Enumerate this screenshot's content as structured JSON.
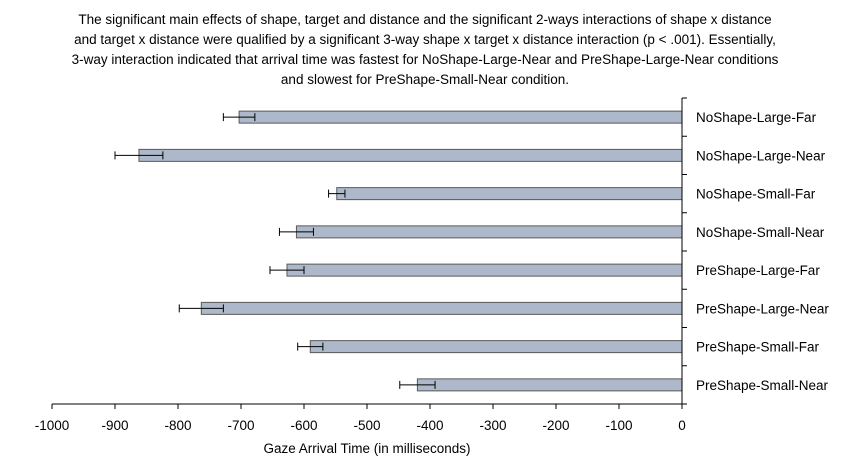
{
  "chart_data": {
    "type": "bar",
    "orientation": "horizontal",
    "title": "The significant main effects of shape, target and distance and the significant 2-ways interactions of shape x distance and target x distance were qualified by a significant 3-way shape x target x distance interaction (p < .001). Essentially, 3-way interaction indicated that arrival time was fastest for NoShape-Large-Near and PreShape-Large-Near conditions and slowest for PreShape-Small-Near condition.",
    "xlabel": "Gaze Arrival Time (in milliseconds)",
    "ylabel": "",
    "xlim": [
      -1000,
      0
    ],
    "xticks": [
      -1000,
      -900,
      -800,
      -700,
      -600,
      -500,
      -400,
      -300,
      -200,
      -100,
      0
    ],
    "category_label_position": "right",
    "grid": false,
    "categories": [
      "NoShape-Large-Far",
      "NoShape-Large-Near",
      "NoShape-Small-Far",
      "NoShape-Small-Near",
      "PreShape-Large-Far",
      "PreShape-Large-Near",
      "PreShape-Small-Far",
      "PreShape-Small-Near"
    ],
    "values": [
      -703,
      -862,
      -548,
      -612,
      -627,
      -763,
      -590,
      -420
    ],
    "error": [
      25,
      38,
      13,
      27,
      27,
      35,
      20,
      28
    ],
    "colors": {
      "bar_fill": "#adb9ca",
      "bar_stroke": "#595959",
      "axis": "#000000"
    }
  }
}
